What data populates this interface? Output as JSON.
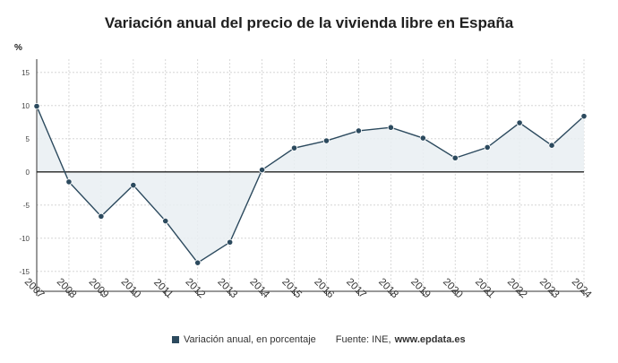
{
  "chart_data": {
    "type": "area",
    "title": "Variación anual del precio de la vivienda libre en España",
    "ylabel": "%",
    "xlabel": "",
    "ylim": [
      -18,
      17
    ],
    "yticks": [
      -15,
      -10,
      -5,
      0,
      5,
      10,
      15
    ],
    "grid": true,
    "categories": [
      "2007",
      "2008",
      "2009",
      "2010",
      "2011",
      "2012",
      "2013",
      "2014",
      "2015",
      "2016",
      "2017",
      "2018",
      "2019",
      "2020",
      "2021",
      "2022",
      "2023",
      "2024"
    ],
    "series": [
      {
        "name": "Variación anual, en porcentaje",
        "values": [
          9.9,
          -1.5,
          -6.7,
          -2.0,
          -7.4,
          -13.7,
          -10.6,
          0.3,
          3.6,
          4.7,
          6.2,
          6.7,
          5.1,
          2.1,
          3.7,
          7.4,
          4.0,
          8.4
        ]
      }
    ],
    "legend": {
      "position": "bottom",
      "series_label": "Variación anual, en porcentaje",
      "source_label": "Fuente: INE,",
      "source_site": "www.epdata.es"
    },
    "colors": {
      "line": "#2c4a5e",
      "fill": "#e9eef2",
      "zero_line": "#222222",
      "grid": "#cfcfcf"
    }
  }
}
